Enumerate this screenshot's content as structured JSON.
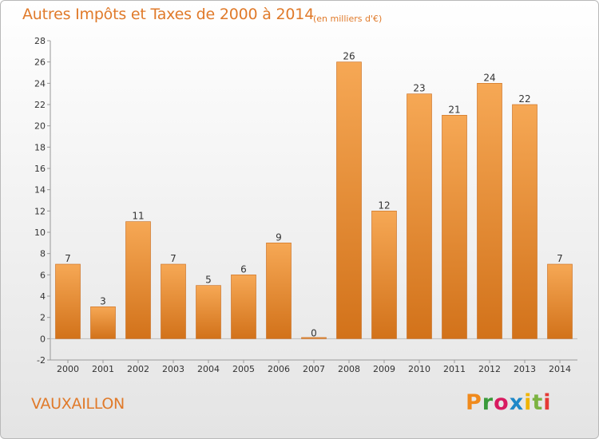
{
  "header": {
    "title": "Autres Impôts et Taxes de 2000 à 2014",
    "subtitle": "(en milliers d'€)"
  },
  "footer": {
    "commune": "VAUXAILLON",
    "logo": "Proxiti",
    "logo_colors": [
      "#f08a1c",
      "#3a9a3a",
      "#d81b60",
      "#1e88c8",
      "#f0b400",
      "#7cb342",
      "#e53935"
    ]
  },
  "colors": {
    "bar_light": "#f6a855",
    "bar_dark": "#d2721a",
    "accent": "#e07a2a"
  },
  "chart_data": {
    "type": "bar",
    "categories": [
      "2000",
      "2001",
      "2002",
      "2003",
      "2004",
      "2005",
      "2006",
      "2007",
      "2008",
      "2009",
      "2010",
      "2011",
      "2012",
      "2013",
      "2014"
    ],
    "values": [
      7,
      3,
      11,
      7,
      5,
      6,
      9,
      0,
      26,
      12,
      23,
      21,
      24,
      22,
      7
    ],
    "ylim": [
      -2,
      28
    ],
    "yticks": [
      -2,
      0,
      2,
      4,
      6,
      8,
      10,
      12,
      14,
      16,
      18,
      20,
      22,
      24,
      26,
      28
    ],
    "grid": false
  }
}
